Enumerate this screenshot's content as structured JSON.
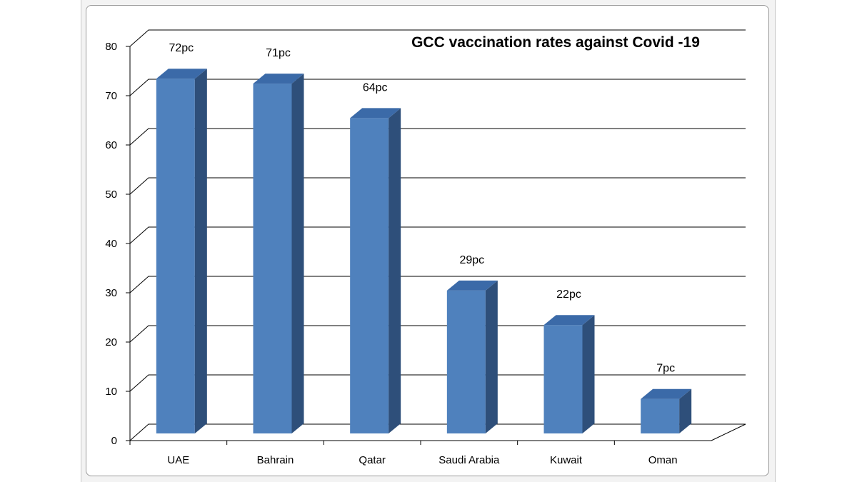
{
  "chart_data": {
    "type": "bar",
    "title": "GCC vaccination rates against Covid -19",
    "categories": [
      "UAE",
      "Bahrain",
      "Qatar",
      "Saudi Arabia",
      "Kuwait",
      "Oman"
    ],
    "values": [
      72,
      71,
      64,
      29,
      22,
      7
    ],
    "data_labels": [
      "72pc",
      "71pc",
      "64pc",
      "29pc",
      "22pc",
      "7pc"
    ],
    "yticks": [
      "0",
      "10",
      "20",
      "30",
      "40",
      "50",
      "60",
      "70",
      "80"
    ],
    "ylim": [
      0,
      80
    ],
    "grid": true,
    "style": "3d-column",
    "colors": {
      "bar_front": "#4f81bd",
      "bar_side": "#2e4f7a",
      "bar_top": "#3b6aa8",
      "grid": "#000000"
    }
  }
}
